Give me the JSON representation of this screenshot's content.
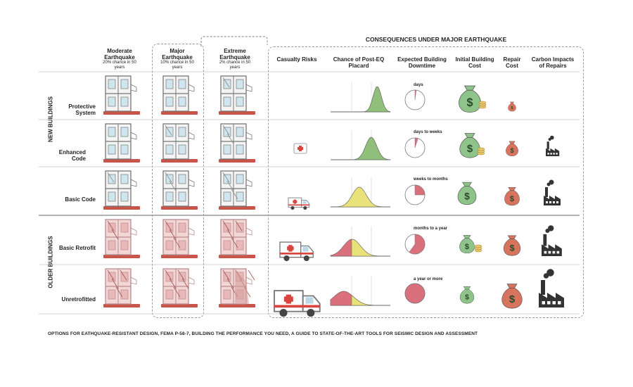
{
  "consequences_title": "CONSEQUENCES UNDER MAJOR EARTHQUAKE",
  "hazard_columns": [
    {
      "title": "Moderate Earthquake",
      "sub": "20% chance in 50 years"
    },
    {
      "title": "Major Earthquake",
      "sub": "10% chance in 50 years"
    },
    {
      "title": "Extreme Earthquake",
      "sub": "2% chance in 50 years"
    }
  ],
  "consequence_columns": [
    "Casualty Risks",
    "Chance of Post-EQ Placard",
    "Expected Building Downtime",
    "Initial Building Cost",
    "Repair Cost",
    "Carbon Impacts of Repairs"
  ],
  "groups": [
    "NEW BUILDINGS",
    "OLDER BUILDINGS"
  ],
  "rows": [
    {
      "label": "Protective System",
      "downtime": "days",
      "downtime_fraction": 0.02,
      "placard_peak": 0.78
    },
    {
      "label": "Enhanced Code",
      "downtime": "days to weeks",
      "downtime_fraction": 0.05,
      "placard_peak": 0.68
    },
    {
      "label": "Basic Code",
      "downtime": "weeks to months",
      "downtime_fraction": 0.25,
      "placard_peak": 0.48
    },
    {
      "label": "Basic Retrofit",
      "downtime": "months to a year",
      "downtime_fraction": 0.6,
      "placard_peak": 0.36
    },
    {
      "label": "Unretrofitted",
      "downtime": "a year or more",
      "downtime_fraction": 1.0,
      "placard_peak": 0.22
    }
  ],
  "footer": "OPTIONS FOR EATHQUAKE-RESISTANT DESIGN, FEMA P-58-7, BUILDING THE PERFORMANCE YOU NEED, A GUIDE TO STATE-OF-THE-ART TOOLS FOR SEISMIC DESIGN AND ASSESSMENT",
  "colors": {
    "green": "#8fbf7a",
    "yellow": "#e9e27a",
    "red": "#d9707c",
    "money_green": "#8ec389",
    "money_red": "#d8735e",
    "dark": "#333333"
  },
  "icons": [
    "building-frame-icon",
    "first-aid-kit-icon",
    "ambulance-icon",
    "money-bag-icon",
    "coin-stack-icon",
    "factory-icon",
    "dollar-sign-icon"
  ]
}
